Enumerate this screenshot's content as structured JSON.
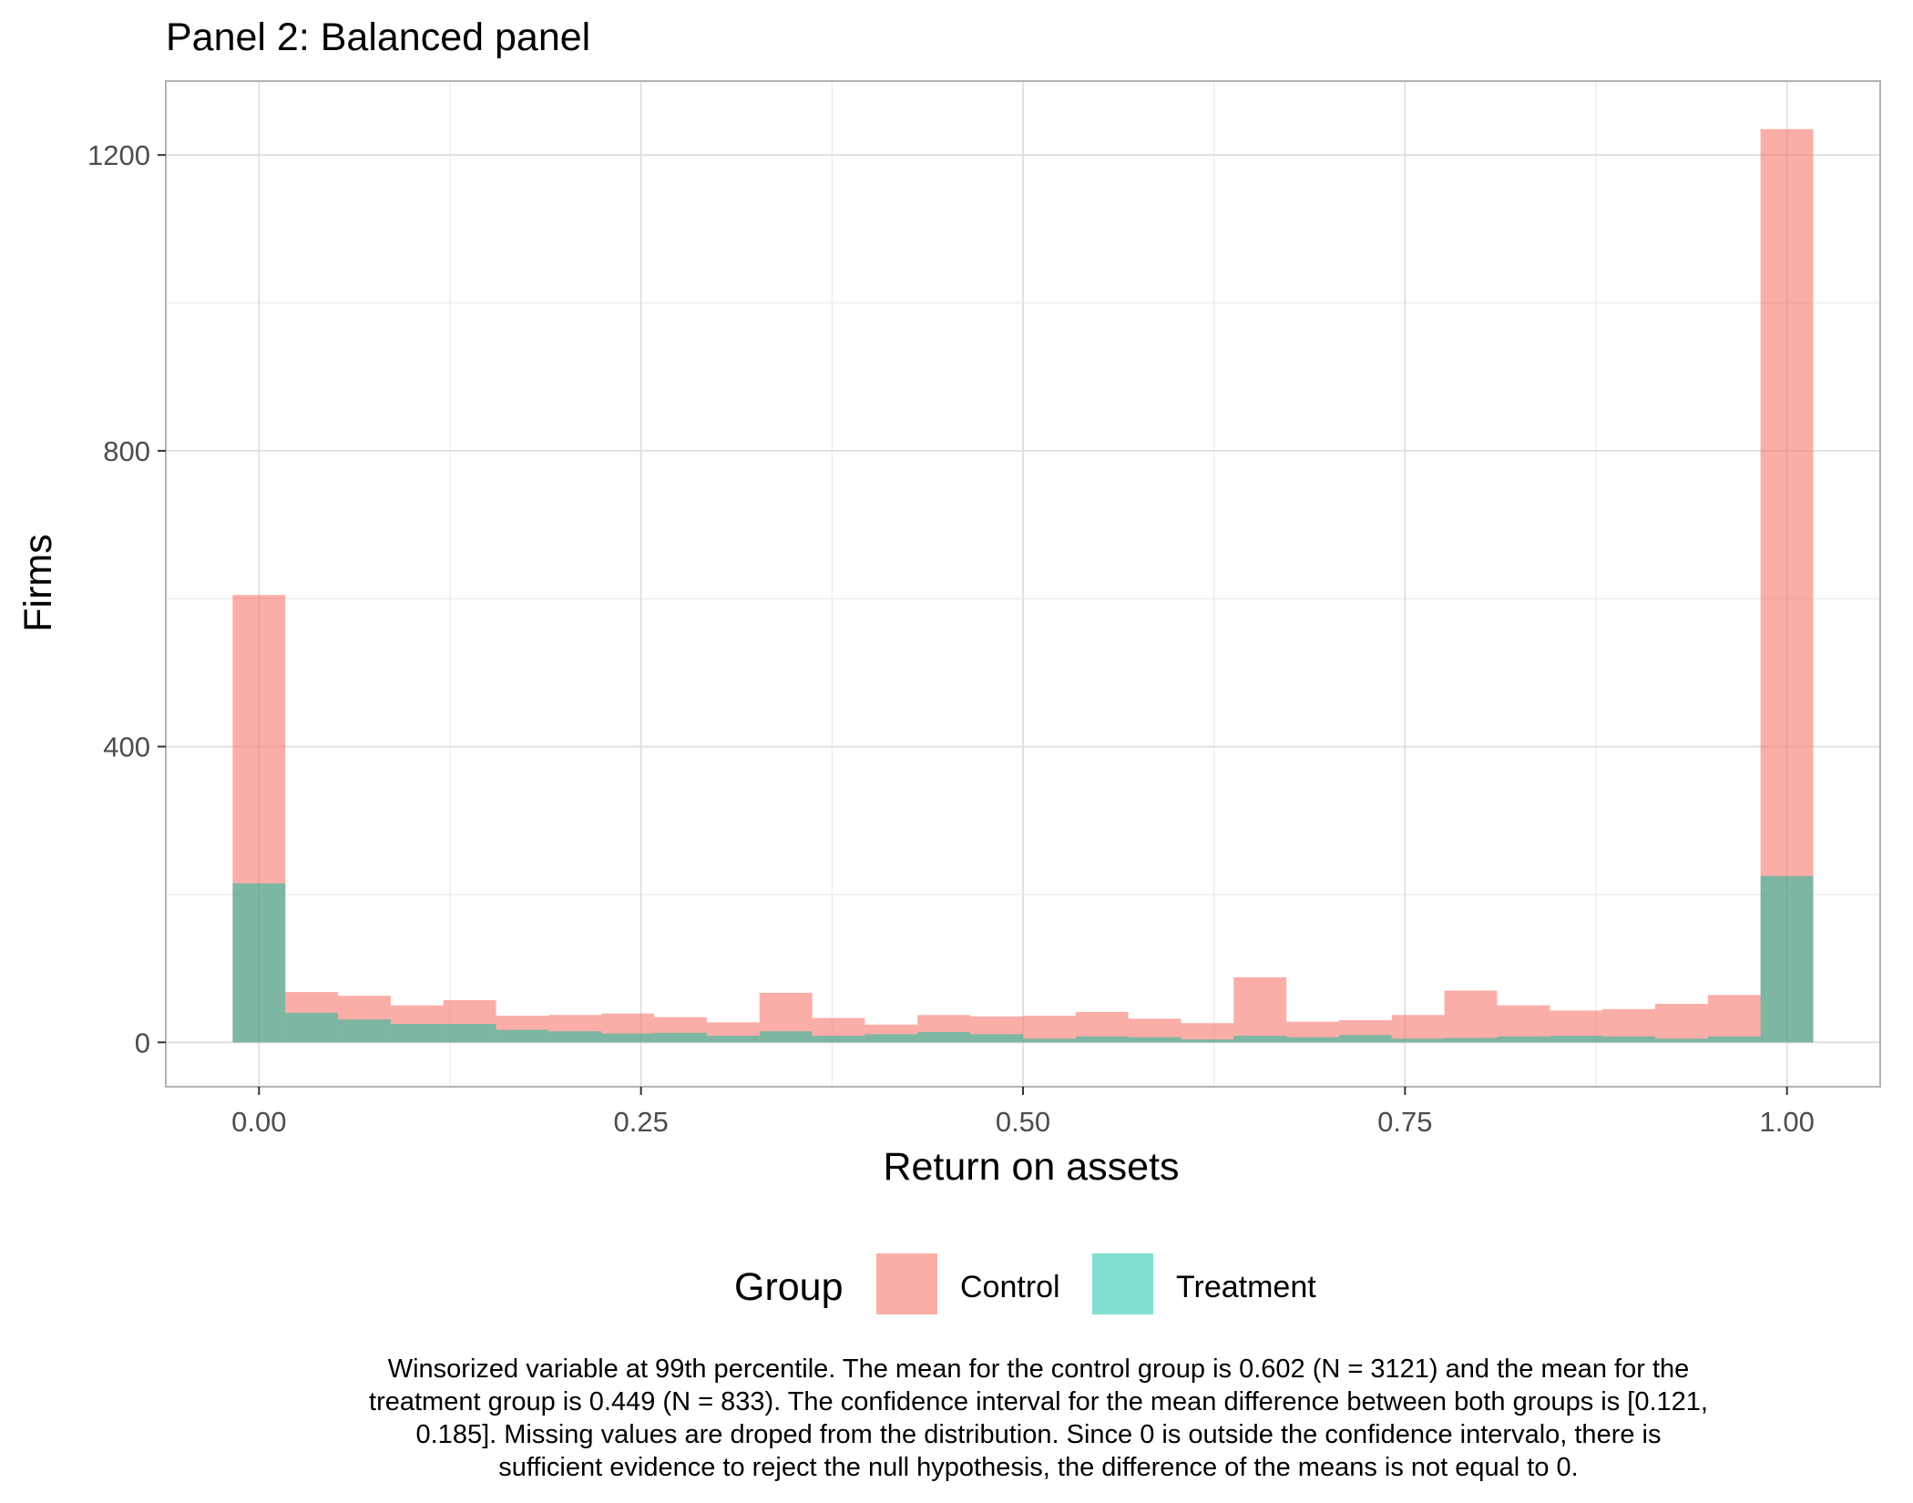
{
  "chart_data": {
    "type": "bar",
    "title": "Panel 2: Balanced panel",
    "xlabel": "Return on assets",
    "ylabel": "Firms",
    "xlim": [
      -0.061,
      1.061
    ],
    "ylim": [
      -60,
      1300
    ],
    "x_ticks": [
      {
        "value": 0,
        "label": "0.00"
      },
      {
        "value": 0.25,
        "label": "0.25"
      },
      {
        "value": 0.5,
        "label": "0.50"
      },
      {
        "value": 0.75,
        "label": "0.75"
      },
      {
        "value": 1,
        "label": "1.00"
      }
    ],
    "y_ticks": [
      {
        "value": 0,
        "label": "0"
      },
      {
        "value": 400,
        "label": "400"
      },
      {
        "value": 800,
        "label": "800"
      },
      {
        "value": 1200,
        "label": "1200"
      }
    ],
    "bin_start": -0.01724,
    "bin_width": 0.03448,
    "grid": true,
    "legend": {
      "title": "Group",
      "position": "bottom"
    },
    "series": [
      {
        "name": "Control",
        "color": "#F8766D",
        "values": [
          605,
          68,
          63,
          50,
          57,
          36,
          37,
          39,
          34,
          27,
          67,
          33,
          24,
          37,
          35,
          36,
          41,
          32,
          26,
          88,
          28,
          30,
          37,
          70,
          50,
          43,
          45,
          52,
          64,
          1235
        ]
      },
      {
        "name": "Treatment",
        "color": "#00BFA0",
        "values": [
          215,
          40,
          31,
          25,
          25,
          17,
          15,
          12,
          13,
          9,
          15,
          9,
          11,
          14,
          11,
          5,
          8,
          7,
          4,
          9,
          7,
          10,
          5,
          6,
          8,
          9,
          8,
          5,
          8,
          225
        ]
      }
    ]
  },
  "caption": {
    "lines": [
      "Winsorized variable at 99th percentile. The mean for the control group is 0.602 (N = 3121) and the mean for the",
      "treatment group is 0.449 (N = 833). The confidence interval for the mean difference between both groups is [0.121,",
      "0.185]. Missing values are droped from the distribution. Since 0 is outside the confidence intervalo, there is",
      "sufficient evidence to reject the null hypothesis, the difference of the means is not equal to 0."
    ]
  }
}
